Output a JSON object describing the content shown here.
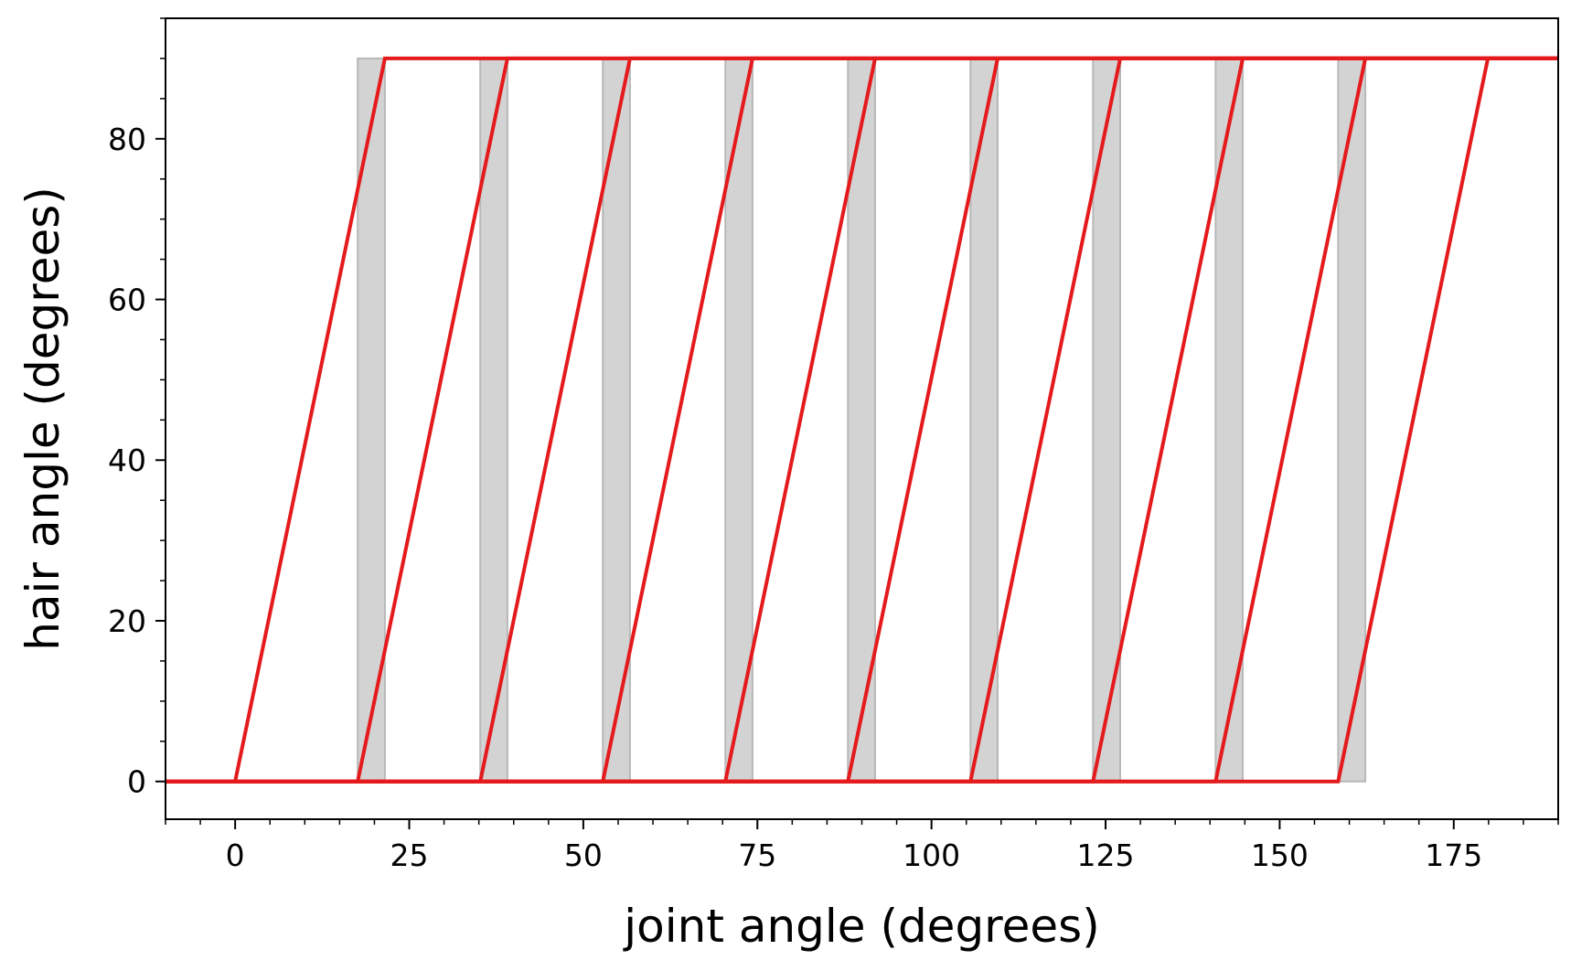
{
  "chart_data": {
    "type": "line",
    "title": "",
    "xlabel": "joint angle (degrees)",
    "ylabel": "hair angle (degrees)",
    "xlim": [
      -10,
      190
    ],
    "ylim": [
      -4.7,
      95
    ],
    "x_major_ticks": [
      0,
      25,
      50,
      75,
      100,
      125,
      150,
      175
    ],
    "x_tick_labels": [
      "0",
      "25",
      "50",
      "75",
      "100",
      "125",
      "150",
      "175"
    ],
    "x_minor_step": 5,
    "y_major_ticks": [
      0,
      20,
      40,
      60,
      80
    ],
    "y_tick_labels": [
      "0",
      "20",
      "40",
      "60",
      "80"
    ],
    "y_minor_step": 5,
    "grid": false,
    "legend": "none",
    "colors": {
      "line": "#e41a1c",
      "band_fill": "#d3d3d3",
      "band_edge": "#b8b8b8",
      "axes": "#000000"
    },
    "series": [
      {
        "x": [
          -10,
          0,
          21.5,
          190
        ],
        "y": [
          0,
          0,
          90,
          90
        ]
      },
      {
        "x": [
          -10,
          17.6,
          39.1,
          190
        ],
        "y": [
          0,
          0,
          90,
          90
        ]
      },
      {
        "x": [
          -10,
          35.2,
          56.7,
          190
        ],
        "y": [
          0,
          0,
          90,
          90
        ]
      },
      {
        "x": [
          -10,
          52.8,
          74.3,
          190
        ],
        "y": [
          0,
          0,
          90,
          90
        ]
      },
      {
        "x": [
          -10,
          70.4,
          91.9,
          190
        ],
        "y": [
          0,
          0,
          90,
          90
        ]
      },
      {
        "x": [
          -10,
          88.0,
          109.5,
          190
        ],
        "y": [
          0,
          0,
          90,
          90
        ]
      },
      {
        "x": [
          -10,
          105.6,
          127.1,
          190
        ],
        "y": [
          0,
          0,
          90,
          90
        ]
      },
      {
        "x": [
          -10,
          123.2,
          144.7,
          190
        ],
        "y": [
          0,
          0,
          90,
          90
        ]
      },
      {
        "x": [
          -10,
          140.8,
          162.3,
          190
        ],
        "y": [
          0,
          0,
          90,
          90
        ]
      },
      {
        "x": [
          -10,
          158.4,
          179.9,
          190
        ],
        "y": [
          0,
          0,
          90,
          90
        ]
      }
    ],
    "shaded_bands": [
      {
        "x0": 17.6,
        "x1": 21.5,
        "y0": 0,
        "y1": 90
      },
      {
        "x0": 35.2,
        "x1": 39.1,
        "y0": 0,
        "y1": 90
      },
      {
        "x0": 52.8,
        "x1": 56.7,
        "y0": 0,
        "y1": 90
      },
      {
        "x0": 70.4,
        "x1": 74.3,
        "y0": 0,
        "y1": 90
      },
      {
        "x0": 88.0,
        "x1": 91.9,
        "y0": 0,
        "y1": 90
      },
      {
        "x0": 105.6,
        "x1": 109.5,
        "y0": 0,
        "y1": 90
      },
      {
        "x0": 123.2,
        "x1": 127.1,
        "y0": 0,
        "y1": 90
      },
      {
        "x0": 140.8,
        "x1": 144.7,
        "y0": 0,
        "y1": 90
      },
      {
        "x0": 158.4,
        "x1": 162.3,
        "y0": 0,
        "y1": 90
      }
    ]
  }
}
